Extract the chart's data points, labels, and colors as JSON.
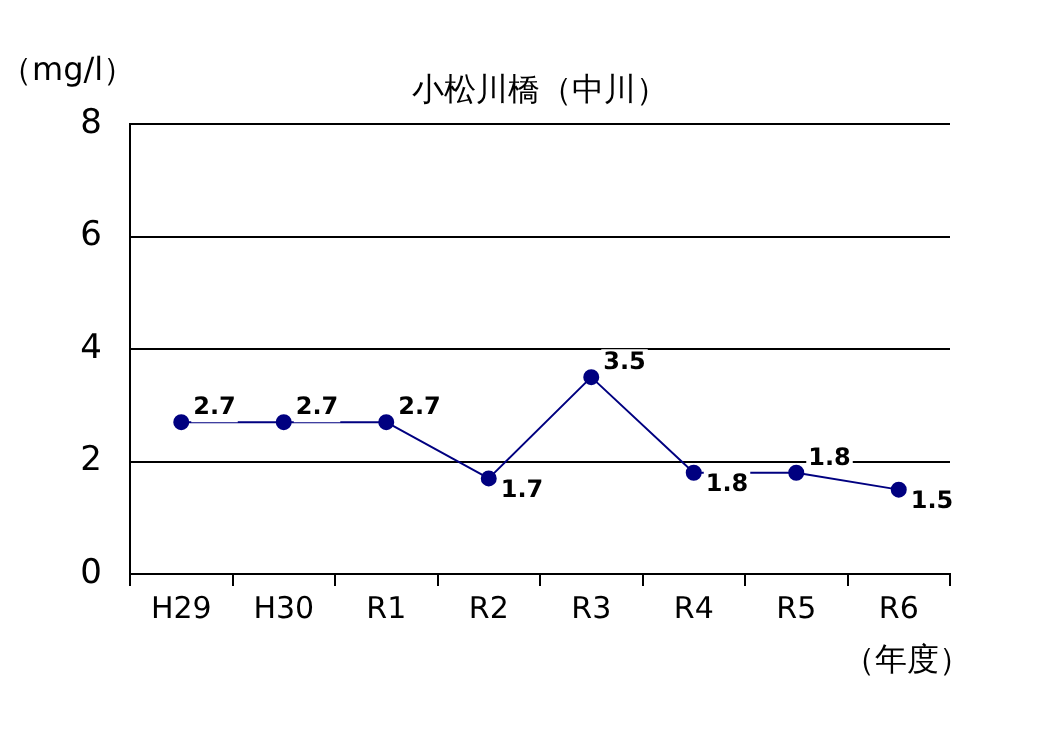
{
  "chart_data": {
    "type": "line",
    "title": "小松川橋（中川）",
    "ylabel": "（mg/l）",
    "xlabel": "（年度）",
    "categories": [
      "H29",
      "H30",
      "R1",
      "R2",
      "R3",
      "R4",
      "R5",
      "R6"
    ],
    "series": [
      {
        "color": "#000080",
        "values": [
          2.7,
          2.7,
          2.7,
          1.7,
          3.5,
          1.8,
          1.8,
          1.5
        ]
      }
    ],
    "ylim": [
      0,
      8
    ],
    "yticks": [
      0,
      2,
      4,
      6,
      8
    ],
    "grid": "y",
    "legend": false,
    "marker": "circle",
    "line_style": "solid",
    "data_labels": true
  }
}
